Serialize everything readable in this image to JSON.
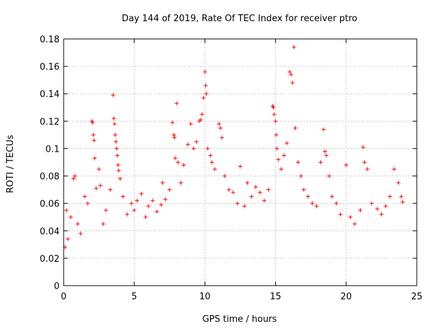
{
  "chart_data": {
    "type": "scatter",
    "title": "Day 144 of 2019, Rate Of TEC Index for receiver ptro",
    "xlabel": "GPS time / hours",
    "ylabel": "ROTI / TECUs",
    "xlim": [
      0,
      25
    ],
    "ylim": [
      0,
      0.18
    ],
    "x_ticks": [
      0,
      5,
      10,
      15,
      20,
      25
    ],
    "x_tick_labels": [
      "0",
      "5",
      "10",
      "15",
      "20",
      "25"
    ],
    "y_ticks": [
      0,
      0.02,
      0.04,
      0.06,
      0.08,
      0.1,
      0.12,
      0.14,
      0.16,
      0.18
    ],
    "y_tick_labels": [
      "0",
      "0.02",
      "0.04",
      "0.06",
      "0.08",
      "0.1",
      "0.12",
      "0.14",
      "0.16",
      "0.18"
    ],
    "grid": true,
    "marker": "+",
    "color": "#ff0000",
    "series": [
      {
        "name": "ROTI",
        "points": [
          [
            0.1,
            0.028
          ],
          [
            0.2,
            0.055
          ],
          [
            0.3,
            0.034
          ],
          [
            0.5,
            0.05
          ],
          [
            0.7,
            0.078
          ],
          [
            0.8,
            0.08
          ],
          [
            1.0,
            0.045
          ],
          [
            1.2,
            0.038
          ],
          [
            1.5,
            0.065
          ],
          [
            1.7,
            0.06
          ],
          [
            2.0,
            0.12
          ],
          [
            2.05,
            0.119
          ],
          [
            2.1,
            0.11
          ],
          [
            2.15,
            0.106
          ],
          [
            2.2,
            0.093
          ],
          [
            2.3,
            0.071
          ],
          [
            2.5,
            0.085
          ],
          [
            2.6,
            0.073
          ],
          [
            2.8,
            0.045
          ],
          [
            3.0,
            0.055
          ],
          [
            3.3,
            0.07
          ],
          [
            3.5,
            0.139
          ],
          [
            3.55,
            0.122
          ],
          [
            3.6,
            0.118
          ],
          [
            3.65,
            0.11
          ],
          [
            3.7,
            0.105
          ],
          [
            3.75,
            0.1
          ],
          [
            3.8,
            0.095
          ],
          [
            3.85,
            0.088
          ],
          [
            3.9,
            0.084
          ],
          [
            4.0,
            0.078
          ],
          [
            4.2,
            0.065
          ],
          [
            4.5,
            0.052
          ],
          [
            4.8,
            0.06
          ],
          [
            5.0,
            0.055
          ],
          [
            5.2,
            0.062
          ],
          [
            5.5,
            0.067
          ],
          [
            5.8,
            0.05
          ],
          [
            6.0,
            0.058
          ],
          [
            6.3,
            0.062
          ],
          [
            6.6,
            0.054
          ],
          [
            6.9,
            0.059
          ],
          [
            7.0,
            0.075
          ],
          [
            7.2,
            0.063
          ],
          [
            7.5,
            0.07
          ],
          [
            7.7,
            0.119
          ],
          [
            7.8,
            0.11
          ],
          [
            7.85,
            0.108
          ],
          [
            7.9,
            0.093
          ],
          [
            8.0,
            0.133
          ],
          [
            8.1,
            0.09
          ],
          [
            8.3,
            0.075
          ],
          [
            8.5,
            0.088
          ],
          [
            8.8,
            0.103
          ],
          [
            9.0,
            0.118
          ],
          [
            9.2,
            0.1
          ],
          [
            9.4,
            0.105
          ],
          [
            9.6,
            0.12
          ],
          [
            9.7,
            0.121
          ],
          [
            9.8,
            0.125
          ],
          [
            9.9,
            0.137
          ],
          [
            10.0,
            0.156
          ],
          [
            10.05,
            0.146
          ],
          [
            10.1,
            0.14
          ],
          [
            10.2,
            0.1
          ],
          [
            10.4,
            0.095
          ],
          [
            10.5,
            0.09
          ],
          [
            10.7,
            0.085
          ],
          [
            11.0,
            0.118
          ],
          [
            11.1,
            0.115
          ],
          [
            11.2,
            0.108
          ],
          [
            11.4,
            0.08
          ],
          [
            11.7,
            0.07
          ],
          [
            12.0,
            0.068
          ],
          [
            12.3,
            0.06
          ],
          [
            12.5,
            0.087
          ],
          [
            12.8,
            0.058
          ],
          [
            13.0,
            0.075
          ],
          [
            13.3,
            0.065
          ],
          [
            13.6,
            0.072
          ],
          [
            13.9,
            0.068
          ],
          [
            14.2,
            0.062
          ],
          [
            14.5,
            0.07
          ],
          [
            14.8,
            0.131
          ],
          [
            14.85,
            0.13
          ],
          [
            14.9,
            0.125
          ],
          [
            15.0,
            0.12
          ],
          [
            15.05,
            0.11
          ],
          [
            15.1,
            0.1
          ],
          [
            15.2,
            0.092
          ],
          [
            15.4,
            0.085
          ],
          [
            15.6,
            0.095
          ],
          [
            15.8,
            0.104
          ],
          [
            16.0,
            0.156
          ],
          [
            16.1,
            0.154
          ],
          [
            16.2,
            0.148
          ],
          [
            16.3,
            0.174
          ],
          [
            16.4,
            0.115
          ],
          [
            16.6,
            0.09
          ],
          [
            16.8,
            0.08
          ],
          [
            17.0,
            0.07
          ],
          [
            17.3,
            0.065
          ],
          [
            17.6,
            0.06
          ],
          [
            17.9,
            0.058
          ],
          [
            18.2,
            0.09
          ],
          [
            18.4,
            0.114
          ],
          [
            18.5,
            0.098
          ],
          [
            18.6,
            0.095
          ],
          [
            18.8,
            0.08
          ],
          [
            19.0,
            0.065
          ],
          [
            19.3,
            0.06
          ],
          [
            19.6,
            0.052
          ],
          [
            20.0,
            0.088
          ],
          [
            20.3,
            0.05
          ],
          [
            20.6,
            0.045
          ],
          [
            21.0,
            0.055
          ],
          [
            21.2,
            0.101
          ],
          [
            21.3,
            0.09
          ],
          [
            21.5,
            0.085
          ],
          [
            21.8,
            0.06
          ],
          [
            22.2,
            0.056
          ],
          [
            22.5,
            0.052
          ],
          [
            22.8,
            0.058
          ],
          [
            23.1,
            0.065
          ],
          [
            23.4,
            0.085
          ],
          [
            23.7,
            0.075
          ],
          [
            23.9,
            0.065
          ],
          [
            24.0,
            0.061
          ]
        ]
      }
    ]
  }
}
